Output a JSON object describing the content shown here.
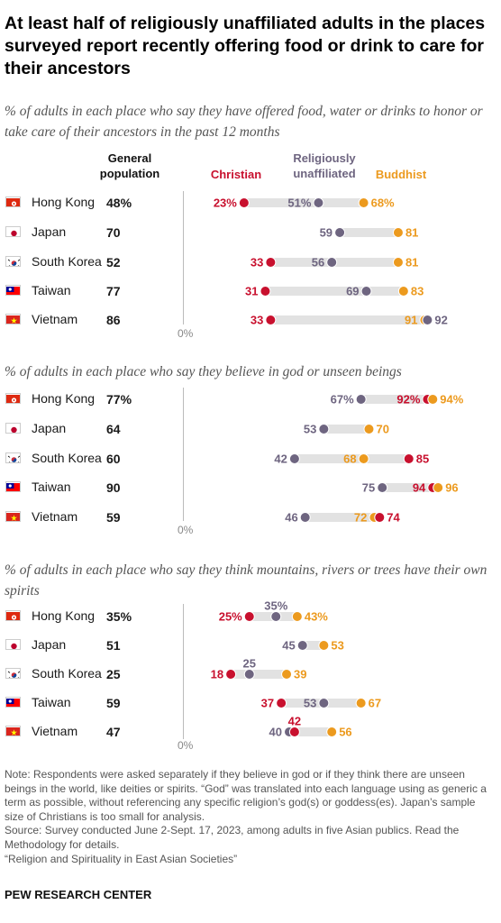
{
  "title": "At least half of religiously unaffiliated adults in the places surveyed report recently offering food or drink to care for their ancestors",
  "headers": {
    "general_line1": "General",
    "general_line2": "population",
    "christian": "Christian",
    "unaffiliated_line1": "Religiously",
    "unaffiliated_line2": "unaffiliated",
    "buddhist": "Buddhist"
  },
  "colors": {
    "christian": "#c8102e",
    "unaffiliated": "#6e6580",
    "buddhist": "#ec9a1e",
    "track": "#e2e2e2"
  },
  "axis_zero_label": "0%",
  "chart_data": [
    {
      "type": "dot_range",
      "subtitle": "% of adults in each place who say they have offered food, water or drinks to honor or take care of their ancestors in the past 12 months",
      "rows": [
        {
          "place": "Hong Kong",
          "flag": "hong-kong",
          "general": "48%",
          "christian": 23,
          "unaffiliated": 51,
          "buddhist": 68,
          "pct": true
        },
        {
          "place": "Japan",
          "flag": "japan",
          "general": "70",
          "christian": null,
          "unaffiliated": 59,
          "buddhist": 81
        },
        {
          "place": "South Korea",
          "flag": "south-korea",
          "general": "52",
          "christian": 33,
          "unaffiliated": 56,
          "buddhist": 81
        },
        {
          "place": "Taiwan",
          "flag": "taiwan",
          "general": "77",
          "christian": 31,
          "unaffiliated": 69,
          "buddhist": 83
        },
        {
          "place": "Vietnam",
          "flag": "vietnam",
          "general": "86",
          "christian": 33,
          "unaffiliated": 92,
          "buddhist": 91
        }
      ]
    },
    {
      "type": "dot_range",
      "subtitle": "% of adults in each place who say they believe in god or unseen beings",
      "rows": [
        {
          "place": "Hong Kong",
          "flag": "hong-kong",
          "general": "77%",
          "christian": 92,
          "unaffiliated": 67,
          "buddhist": 94,
          "pct": true
        },
        {
          "place": "Japan",
          "flag": "japan",
          "general": "64",
          "christian": null,
          "unaffiliated": 53,
          "buddhist": 70
        },
        {
          "place": "South Korea",
          "flag": "south-korea",
          "general": "60",
          "christian": 85,
          "unaffiliated": 42,
          "buddhist": 68
        },
        {
          "place": "Taiwan",
          "flag": "taiwan",
          "general": "90",
          "christian": 94,
          "unaffiliated": 75,
          "buddhist": 96
        },
        {
          "place": "Vietnam",
          "flag": "vietnam",
          "general": "59",
          "christian": 74,
          "unaffiliated": 46,
          "buddhist": 72
        }
      ]
    },
    {
      "type": "dot_range",
      "subtitle": "% of adults in each place who say they think mountains, rivers or trees have their own spirits",
      "rows": [
        {
          "place": "Hong Kong",
          "flag": "hong-kong",
          "general": "35%",
          "christian": 25,
          "unaffiliated": 35,
          "buddhist": 43,
          "pct": true
        },
        {
          "place": "Japan",
          "flag": "japan",
          "general": "51",
          "christian": null,
          "unaffiliated": 45,
          "buddhist": 53
        },
        {
          "place": "South Korea",
          "flag": "south-korea",
          "general": "25",
          "christian": 18,
          "unaffiliated": 25,
          "buddhist": 39
        },
        {
          "place": "Taiwan",
          "flag": "taiwan",
          "general": "59",
          "christian": 37,
          "unaffiliated": 53,
          "buddhist": 67
        },
        {
          "place": "Vietnam",
          "flag": "vietnam",
          "general": "47",
          "christian": 42,
          "unaffiliated": 40,
          "buddhist": 56
        }
      ]
    }
  ],
  "notes": {
    "note": "Note: Respondents were asked separately if they believe in god or if they think there are unseen beings in the world, like deities or spirits. “God” was translated into each language using as generic a term as possible, without referencing any specific religion’s god(s) or goddess(es). Japan’s sample size of Christians is too small for analysis.",
    "source": "Source: Survey conducted June 2-Sept. 17, 2023, among adults in five Asian publics. Read the Methodology for details.",
    "report": "“Religion and Spirituality in East Asian Societies”"
  },
  "brand": "PEW RESEARCH CENTER"
}
